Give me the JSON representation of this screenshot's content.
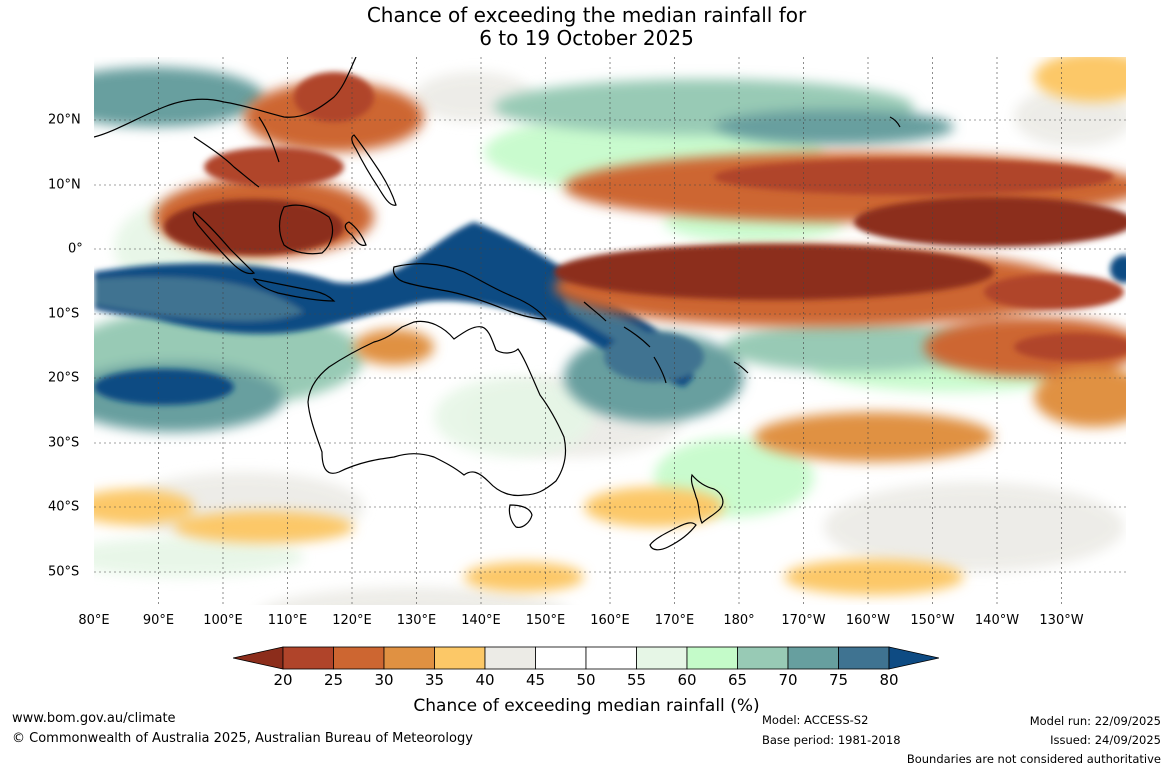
{
  "title": {
    "line1": "Chance of exceeding the median rainfall for",
    "line2": "6 to 19 October 2025"
  },
  "map": {
    "lon_labels": [
      "80°E",
      "90°E",
      "100°E",
      "110°E",
      "120°E",
      "130°E",
      "140°E",
      "150°E",
      "160°E",
      "170°E",
      "180°",
      "170°W",
      "160°W",
      "150°W",
      "140°W",
      "130°W"
    ],
    "lat_labels": [
      "20°N",
      "10°N",
      "0°",
      "10°S",
      "20°S",
      "30°S",
      "40°S",
      "50°S"
    ],
    "lon_range": [
      80,
      240
    ],
    "lat_range": [
      -55,
      30
    ]
  },
  "colorbar": {
    "ticks": [
      "20",
      "25",
      "30",
      "35",
      "40",
      "45",
      "50",
      "55",
      "60",
      "65",
      "70",
      "75",
      "80"
    ],
    "colors": [
      "#8c2d1b",
      "#b0442a",
      "#cd6631",
      "#e09142",
      "#fcc867",
      "#ecebe6",
      "#ffffff",
      "#ffffff",
      "#e6f6e6",
      "#c4fbc9",
      "#98cab5",
      "#679f9f",
      "#3f7391",
      "#0e4b83"
    ],
    "title": "Chance of exceeding median rainfall (%)"
  },
  "footer": {
    "website": "www.bom.gov.au/climate",
    "copyright": "© Commonwealth of Australia 2025, Australian Bureau of Meteorology",
    "model": "Model: ACCESS-S2",
    "base_period": "Base period: 1981-2018",
    "model_run": "Model run: 22/09/2025",
    "issued": "Issued: 24/09/2025",
    "disclaimer": "Boundaries are not considered authoritative"
  }
}
